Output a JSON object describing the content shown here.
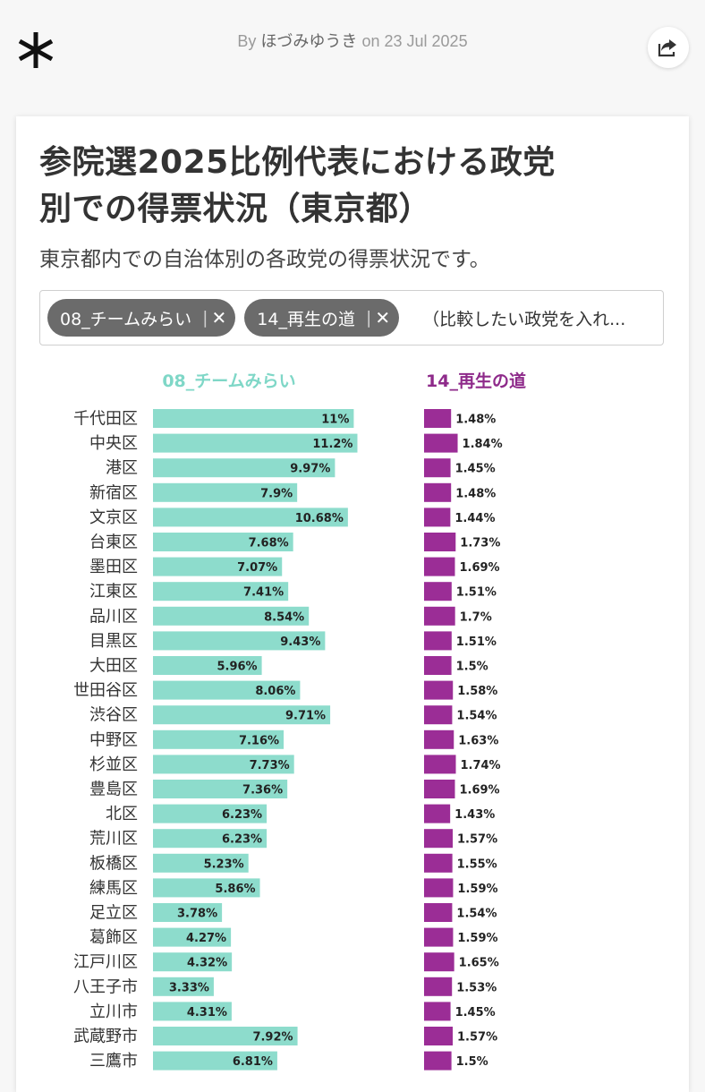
{
  "header": {
    "byline_prefix": "By",
    "author": "ほづみゆうき",
    "byline_on": "on",
    "date": "23 Jul 2025",
    "logo_icon": "asterisk-icon",
    "share_icon": "share-icon"
  },
  "card": {
    "title_line1": "参院選2025比例代表における政党",
    "title_line2": "別での得票状況（東京都）",
    "subtitle": "東京都内での自治体別の各政党の得票状況です。",
    "selector": {
      "chips": [
        {
          "label": "08_チームみらい",
          "remove": "✕"
        },
        {
          "label": "14_再生の道",
          "remove": "✕"
        }
      ],
      "separator": "|",
      "placeholder": "（比較したい政党を入れ..."
    }
  },
  "chart_data": {
    "type": "bar",
    "orientation": "horizontal",
    "categories": [
      "千代田区",
      "中央区",
      "港区",
      "新宿区",
      "文京区",
      "台東区",
      "墨田区",
      "江東区",
      "品川区",
      "目黒区",
      "大田区",
      "世田谷区",
      "渋谷区",
      "中野区",
      "杉並区",
      "豊島区",
      "北区",
      "荒川区",
      "板橋区",
      "練馬区",
      "足立区",
      "葛飾区",
      "江戸川区",
      "八王子市",
      "立川市",
      "武蔵野市",
      "三鷹市"
    ],
    "series": [
      {
        "name": "08_チームみらい",
        "color": "#8ddccc",
        "header_color": "#7fd7c7",
        "values": [
          11,
          11.2,
          9.97,
          7.9,
          10.68,
          7.68,
          7.07,
          7.41,
          8.54,
          9.43,
          5.96,
          8.06,
          9.71,
          7.16,
          7.73,
          7.36,
          6.23,
          6.23,
          5.23,
          5.86,
          3.78,
          4.27,
          4.32,
          3.33,
          4.31,
          7.92,
          6.81
        ],
        "labels": [
          "11%",
          "11.2%",
          "9.97%",
          "7.9%",
          "10.68%",
          "7.68%",
          "7.07%",
          "7.41%",
          "8.54%",
          "9.43%",
          "5.96%",
          "8.06%",
          "9.71%",
          "7.16%",
          "7.73%",
          "7.36%",
          "6.23%",
          "6.23%",
          "5.23%",
          "5.86%",
          "3.78%",
          "4.27%",
          "4.32%",
          "3.33%",
          "4.31%",
          "7.92%",
          "6.81%"
        ]
      },
      {
        "name": "14_再生の道",
        "color": "#9b2d96",
        "header_color": "#8e2a8a",
        "values": [
          1.48,
          1.84,
          1.45,
          1.48,
          1.44,
          1.73,
          1.69,
          1.51,
          1.7,
          1.51,
          1.5,
          1.58,
          1.54,
          1.63,
          1.74,
          1.69,
          1.43,
          1.57,
          1.55,
          1.59,
          1.54,
          1.59,
          1.65,
          1.53,
          1.45,
          1.57,
          1.5
        ],
        "labels": [
          "1.48%",
          "1.84%",
          "1.45%",
          "1.48%",
          "1.44%",
          "1.73%",
          "1.69%",
          "1.51%",
          "1.7%",
          "1.51%",
          "1.5%",
          "1.58%",
          "1.54%",
          "1.63%",
          "1.74%",
          "1.69%",
          "1.43%",
          "1.57%",
          "1.55%",
          "1.59%",
          "1.54%",
          "1.59%",
          "1.65%",
          "1.53%",
          "1.45%",
          "1.57%",
          "1.5%"
        ]
      }
    ],
    "unit": "%",
    "grid": false,
    "legend": "column headers"
  }
}
